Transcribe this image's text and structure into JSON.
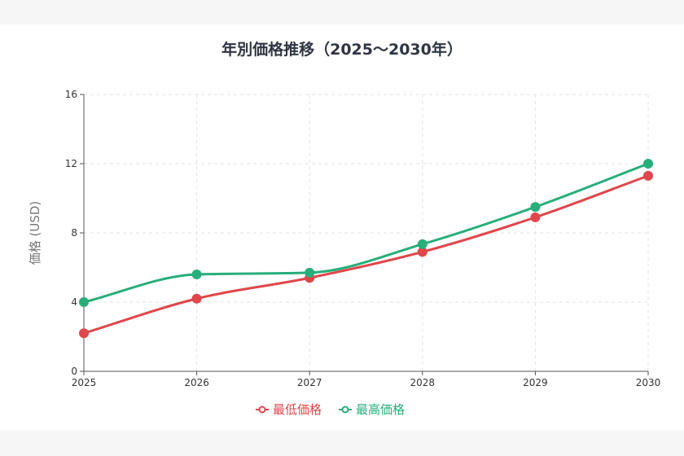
{
  "chart_data": {
    "type": "line",
    "title": "年別価格推移（2025〜2030年）",
    "xlabel": "",
    "ylabel": "価格 (USD)",
    "x": [
      "2025",
      "2026",
      "2027",
      "2028",
      "2029",
      "2030"
    ],
    "yticks": [
      0,
      4,
      8,
      12,
      16
    ],
    "ylim": [
      0,
      16
    ],
    "grid": true,
    "legend_position": "bottom",
    "series": [
      {
        "name": "最低価格",
        "color": "#e0464b",
        "values": [
          2.2,
          4.2,
          5.4,
          6.9,
          8.9,
          11.3
        ]
      },
      {
        "name": "最高価格",
        "color": "#27ae7a",
        "values": [
          4.0,
          5.6,
          5.7,
          7.35,
          9.5,
          12.0
        ]
      }
    ]
  }
}
